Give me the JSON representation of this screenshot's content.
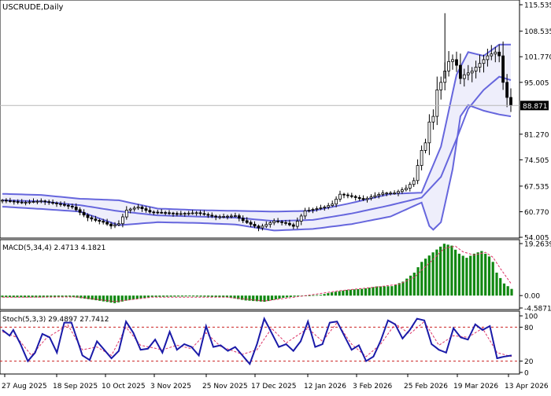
{
  "chart_data": [
    {
      "type": "candlestick",
      "symbol_label": "USCRUDE,Daily",
      "price_marker": "88.871",
      "price_marker_value": 88.871,
      "ylim": [
        54.005,
        115.535
      ],
      "y_ticks": [
        "115.535",
        "108.535",
        "101.770",
        "95.005",
        "88.871",
        "81.270",
        "74.505",
        "67.535",
        "60.770",
        "54.005"
      ],
      "y_tick_values": [
        115.535,
        108.535,
        101.77,
        95.005,
        88.871,
        81.27,
        74.505,
        67.535,
        60.77,
        54.005
      ],
      "x_ticks": [
        "27 Aug 2025",
        "18 Sep 2025",
        "10 Oct 2025",
        "3 Nov 2025",
        "25 Nov 2025",
        "17 Dec 2025",
        "12 Jan 2026",
        "3 Feb 2026",
        "25 Feb 2026",
        "19 Mar 2026",
        "13 Apr 2026"
      ],
      "indicator": "Bollinger Bands",
      "bands": {
        "middle": [
          [
            0,
            63.8
          ],
          [
            10,
            63.5
          ],
          [
            20,
            62.5
          ],
          [
            30,
            60.9
          ],
          [
            40,
            59.8
          ],
          [
            50,
            59.5
          ],
          [
            60,
            59.2
          ],
          [
            70,
            58.3
          ],
          [
            80,
            58.6
          ],
          [
            90,
            60.3
          ],
          [
            100,
            62.5
          ],
          [
            108,
            64.5
          ],
          [
            113,
            70
          ],
          [
            117,
            80
          ],
          [
            120,
            88
          ],
          [
            124,
            93
          ],
          [
            128,
            96.5
          ],
          [
            131,
            95.6
          ]
        ],
        "upper": [
          [
            0,
            65.5
          ],
          [
            10,
            65.2
          ],
          [
            20,
            64.2
          ],
          [
            30,
            63.8
          ],
          [
            40,
            61.6
          ],
          [
            50,
            61.2
          ],
          [
            60,
            61
          ],
          [
            70,
            60.8
          ],
          [
            80,
            61
          ],
          [
            90,
            63.1
          ],
          [
            100,
            65.5
          ],
          [
            108,
            65.8
          ],
          [
            113,
            78
          ],
          [
            117,
            97
          ],
          [
            120,
            103
          ],
          [
            124,
            102
          ],
          [
            128,
            105
          ],
          [
            131,
            105
          ]
        ],
        "lower": [
          [
            0,
            62.1
          ],
          [
            10,
            61.5
          ],
          [
            20,
            60.8
          ],
          [
            30,
            57.2
          ],
          [
            40,
            58
          ],
          [
            50,
            57.8
          ],
          [
            60,
            57.4
          ],
          [
            70,
            55.8
          ],
          [
            80,
            56.2
          ],
          [
            90,
            57.5
          ],
          [
            100,
            59.5
          ],
          [
            108,
            63.2
          ],
          [
            110,
            57
          ],
          [
            111,
            56
          ],
          [
            113,
            58
          ],
          [
            116,
            72
          ],
          [
            118,
            86
          ],
          [
            120,
            89
          ],
          [
            124,
            87.5
          ],
          [
            128,
            86.5
          ],
          [
            131,
            86
          ]
        ]
      },
      "close_path": [
        [
          0,
          63.8
        ],
        [
          5,
          63.2
        ],
        [
          10,
          63.6
        ],
        [
          15,
          62.7
        ],
        [
          18,
          62
        ],
        [
          22,
          59.2
        ],
        [
          24,
          58.5
        ],
        [
          26,
          58
        ],
        [
          28,
          57
        ],
        [
          30,
          57.6
        ],
        [
          32,
          61.2
        ],
        [
          35,
          62
        ],
        [
          38,
          60.7
        ],
        [
          42,
          60.5
        ],
        [
          45,
          60.2
        ],
        [
          50,
          60.5
        ],
        [
          55,
          59.4
        ],
        [
          60,
          59.7
        ],
        [
          62,
          58.4
        ],
        [
          66,
          56.5
        ],
        [
          70,
          58.3
        ],
        [
          73,
          57.7
        ],
        [
          75,
          56.9
        ],
        [
          78,
          61
        ],
        [
          83,
          62
        ],
        [
          85,
          62.8
        ],
        [
          87,
          65.4
        ],
        [
          90,
          64.8
        ],
        [
          93,
          64
        ],
        [
          98,
          65.7
        ],
        [
          101,
          65.7
        ],
        [
          104,
          67
        ],
        [
          106,
          69
        ],
        [
          108,
          77
        ],
        [
          109,
          79
        ],
        [
          110,
          84.5
        ],
        [
          111,
          86
        ],
        [
          112,
          93
        ],
        [
          113,
          95
        ],
        [
          114,
          98
        ],
        [
          115,
          100.5
        ],
        [
          116,
          101
        ],
        [
          117,
          99.5
        ],
        [
          118,
          96
        ],
        [
          119,
          97
        ],
        [
          121,
          98
        ],
        [
          123,
          100
        ],
        [
          125,
          102
        ],
        [
          127,
          103
        ],
        [
          128,
          102
        ],
        [
          129,
          95
        ],
        [
          130,
          91
        ],
        [
          131,
          88.871
        ]
      ]
    },
    {
      "type": "histogram",
      "title": "MACD(5,34,4) 2.4713 4.1821",
      "ylim": [
        -4.5871,
        19.2639
      ],
      "y_ticks": [
        "19.2639",
        "0.00",
        "-4.5871"
      ],
      "y_tick_values": [
        19.2639,
        0,
        -4.5871
      ],
      "main": [
        [
          0,
          -0.6
        ],
        [
          10,
          -0.7
        ],
        [
          18,
          -0.4
        ],
        [
          24,
          -1.5
        ],
        [
          30,
          -2.8
        ],
        [
          34,
          -1.6
        ],
        [
          40,
          -0.5
        ],
        [
          50,
          -0.3
        ],
        [
          60,
          -0.6
        ],
        [
          65,
          -1.8
        ],
        [
          70,
          -2.3
        ],
        [
          75,
          -0.8
        ],
        [
          80,
          -0.1
        ],
        [
          85,
          0.3
        ],
        [
          88,
          1.2
        ],
        [
          92,
          2.1
        ],
        [
          96,
          2.5
        ],
        [
          100,
          3.4
        ],
        [
          104,
          3.5
        ],
        [
          107,
          5.2
        ],
        [
          110,
          8.5
        ],
        [
          112,
          12.5
        ],
        [
          115,
          16
        ],
        [
          118,
          19.2
        ],
        [
          120,
          18.5
        ],
        [
          122,
          15.5
        ],
        [
          124,
          14
        ],
        [
          126,
          15.5
        ],
        [
          128,
          16.5
        ],
        [
          130,
          14.5
        ],
        [
          131,
          12.5
        ],
        [
          132,
          8.5
        ],
        [
          134,
          4.5
        ],
        [
          136,
          2.47
        ]
      ],
      "signal": [
        [
          0,
          -0.6
        ],
        [
          20,
          -0.5
        ],
        [
          30,
          -2.2
        ],
        [
          40,
          -0.6
        ],
        [
          60,
          -0.6
        ],
        [
          70,
          -2
        ],
        [
          80,
          -0.2
        ],
        [
          90,
          1.8
        ],
        [
          100,
          3.2
        ],
        [
          106,
          4.2
        ],
        [
          110,
          6.8
        ],
        [
          114,
          12
        ],
        [
          118,
          17.5
        ],
        [
          121,
          18.3
        ],
        [
          123,
          16.2
        ],
        [
          126,
          15
        ],
        [
          129,
          16
        ],
        [
          131,
          14.2
        ],
        [
          133,
          10
        ],
        [
          136,
          4.18
        ]
      ]
    },
    {
      "type": "line",
      "title": "Stoch(5,3,3) 29.4897 27.7412",
      "ylim": [
        0,
        100
      ],
      "y_ticks": [
        "100",
        "80",
        "20",
        "0"
      ],
      "y_tick_values": [
        100,
        80,
        20,
        0
      ],
      "levels": [
        80,
        20
      ],
      "main": [
        [
          0,
          75
        ],
        [
          2,
          65
        ],
        [
          3,
          75
        ],
        [
          5,
          50
        ],
        [
          7,
          20
        ],
        [
          9,
          35
        ],
        [
          11,
          68
        ],
        [
          13,
          62
        ],
        [
          15,
          35
        ],
        [
          17,
          88
        ],
        [
          19,
          88
        ],
        [
          21,
          50
        ],
        [
          22,
          30
        ],
        [
          24,
          22
        ],
        [
          26,
          55
        ],
        [
          28,
          40
        ],
        [
          30,
          25
        ],
        [
          32,
          38
        ],
        [
          34,
          90
        ],
        [
          36,
          70
        ],
        [
          38,
          40
        ],
        [
          40,
          42
        ],
        [
          42,
          58
        ],
        [
          44,
          35
        ],
        [
          46,
          72
        ],
        [
          48,
          40
        ],
        [
          50,
          50
        ],
        [
          52,
          45
        ],
        [
          54,
          30
        ],
        [
          56,
          82
        ],
        [
          58,
          45
        ],
        [
          60,
          48
        ],
        [
          62,
          38
        ],
        [
          64,
          45
        ],
        [
          66,
          30
        ],
        [
          68,
          15
        ],
        [
          70,
          50
        ],
        [
          72,
          95
        ],
        [
          74,
          70
        ],
        [
          76,
          45
        ],
        [
          78,
          50
        ],
        [
          80,
          38
        ],
        [
          82,
          55
        ],
        [
          84,
          90
        ],
        [
          86,
          45
        ],
        [
          88,
          50
        ],
        [
          90,
          88
        ],
        [
          92,
          90
        ],
        [
          94,
          65
        ],
        [
          96,
          40
        ],
        [
          98,
          48
        ],
        [
          100,
          20
        ],
        [
          102,
          28
        ],
        [
          104,
          56
        ],
        [
          106,
          92
        ],
        [
          108,
          85
        ],
        [
          110,
          60
        ],
        [
          112,
          75
        ],
        [
          114,
          95
        ],
        [
          116,
          92
        ],
        [
          118,
          50
        ],
        [
          120,
          40
        ],
        [
          122,
          35
        ],
        [
          124,
          78
        ],
        [
          126,
          62
        ],
        [
          128,
          58
        ],
        [
          130,
          85
        ],
        [
          132,
          75
        ],
        [
          134,
          82
        ],
        [
          136,
          25
        ],
        [
          138,
          28
        ],
        [
          140,
          30
        ]
      ],
      "signal": [
        [
          0,
          72
        ],
        [
          4,
          62
        ],
        [
          8,
          30
        ],
        [
          12,
          60
        ],
        [
          18,
          84
        ],
        [
          22,
          40
        ],
        [
          26,
          45
        ],
        [
          30,
          30
        ],
        [
          34,
          80
        ],
        [
          38,
          48
        ],
        [
          44,
          40
        ],
        [
          48,
          48
        ],
        [
          52,
          42
        ],
        [
          56,
          70
        ],
        [
          60,
          46
        ],
        [
          66,
          32
        ],
        [
          70,
          40
        ],
        [
          74,
          78
        ],
        [
          78,
          52
        ],
        [
          84,
          78
        ],
        [
          88,
          55
        ],
        [
          92,
          88
        ],
        [
          96,
          50
        ],
        [
          100,
          28
        ],
        [
          104,
          50
        ],
        [
          108,
          86
        ],
        [
          112,
          68
        ],
        [
          116,
          90
        ],
        [
          120,
          48
        ],
        [
          124,
          65
        ],
        [
          128,
          62
        ],
        [
          132,
          78
        ],
        [
          136,
          35
        ],
        [
          140,
          28
        ]
      ]
    }
  ]
}
